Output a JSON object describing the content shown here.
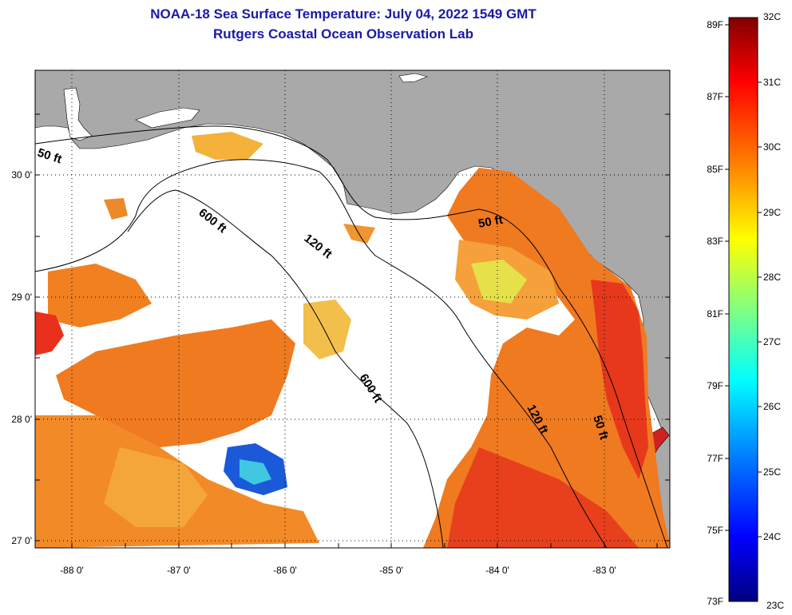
{
  "header": {
    "title_line1": "NOAA-18 Sea Surface Temperature:  July 04, 2022 1549 GMT",
    "title_line2": "Rutgers Coastal Ocean Observation Lab"
  },
  "map": {
    "lat_ticks": [
      "30 0'",
      "29 0'",
      "28 0'",
      "27 0'"
    ],
    "lon_ticks": [
      "-88 0'",
      "-87 0'",
      "-86 0'",
      "-85 0'",
      "-84 0'",
      "-83 0'"
    ],
    "contour_labels": [
      "50 ft",
      "600 ft",
      "120 ft",
      "50 ft",
      "600 ft",
      "120 ft",
      "50 ft"
    ],
    "colors": {
      "land": "#a9a9a9",
      "no_data": "#ffffff",
      "grid": "#000000"
    }
  },
  "colorbar": {
    "fahrenheit": [
      "89F",
      "87F",
      "85F",
      "83F",
      "81F",
      "79F",
      "77F",
      "75F",
      "73F"
    ],
    "celsius": [
      "32C",
      "31C",
      "30C",
      "29C",
      "28C",
      "27C",
      "26C",
      "25C",
      "24C",
      "23C"
    ],
    "colors": [
      "#800000",
      "#ff0000",
      "#ff8000",
      "#ffff00",
      "#80ff80",
      "#00ffff",
      "#0080ff",
      "#0000ff",
      "#000080"
    ]
  }
}
